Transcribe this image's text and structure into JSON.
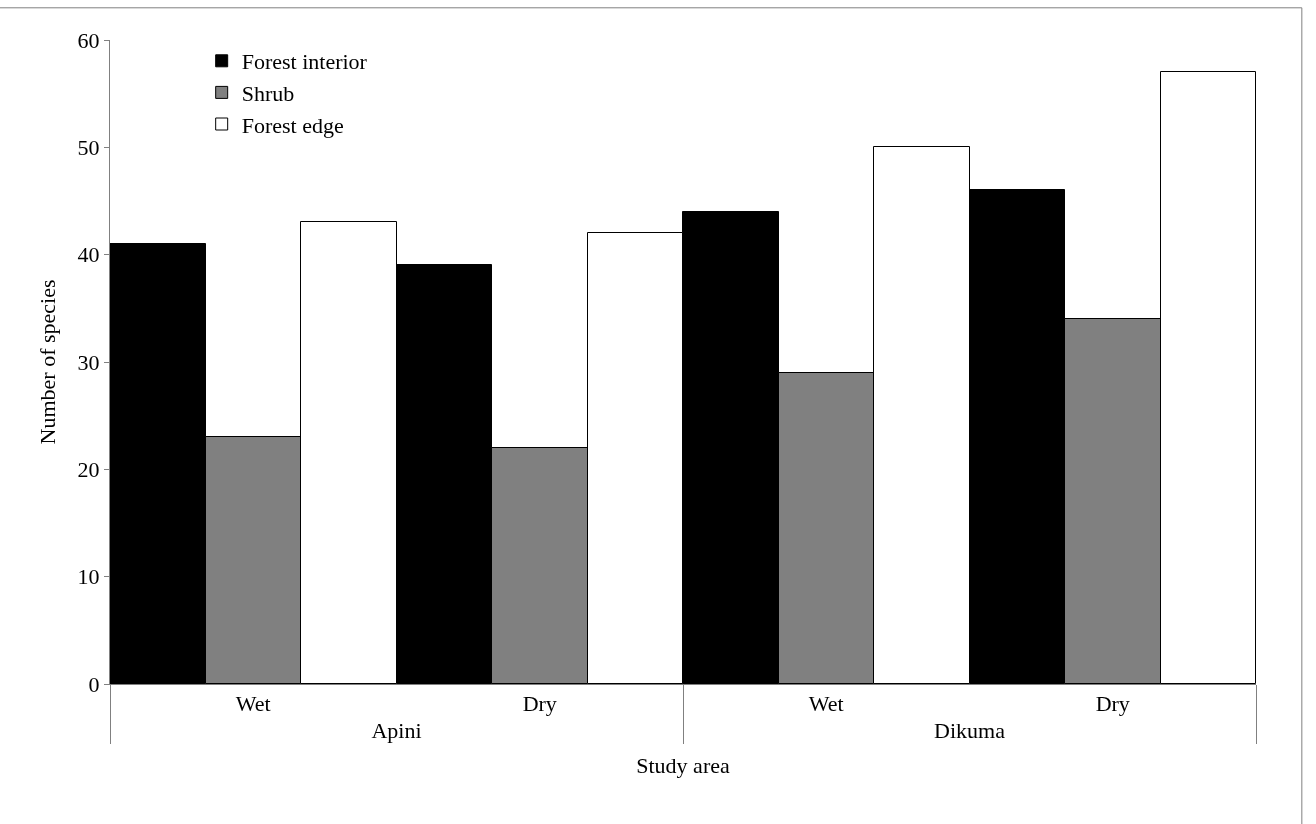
{
  "chart_data": {
    "type": "bar",
    "xlabel": "Study area",
    "ylabel": "Number of species",
    "categories": [
      "Wet",
      "Dry",
      "Wet",
      "Dry"
    ],
    "annotations": [
      "Apini",
      "Dikuma"
    ],
    "series": [
      {
        "name": "Forest interior",
        "color": "#000000",
        "values": [
          41,
          39,
          44,
          46
        ]
      },
      {
        "name": "Shrub",
        "color": "#808080",
        "values": [
          23,
          22,
          29,
          34
        ]
      },
      {
        "name": "Forest edge",
        "color": "#ffffff",
        "values": [
          43,
          42,
          50,
          57
        ]
      }
    ],
    "ylim": [
      0,
      60
    ],
    "yticks": [
      0,
      10,
      20,
      30,
      40,
      50,
      60
    ],
    "grid": false,
    "legend": "top left"
  }
}
